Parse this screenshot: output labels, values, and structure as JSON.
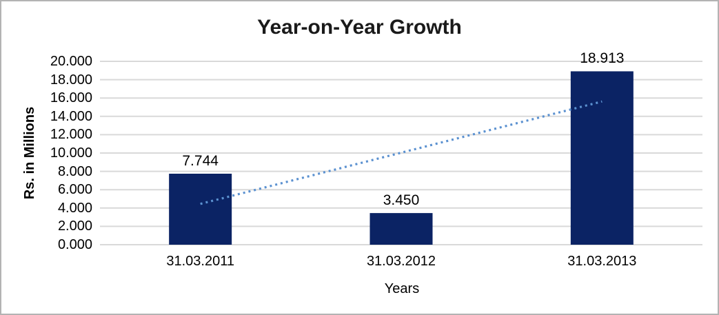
{
  "chart_data": {
    "type": "bar",
    "title": "Year-on-Year Growth",
    "xlabel": "Years",
    "ylabel": "Rs. in Millions",
    "categories": [
      "31.03.2011",
      "31.03.2012",
      "31.03.2013"
    ],
    "values": [
      7.744,
      3.45,
      18.913
    ],
    "value_labels": [
      "7.744",
      "3.450",
      "18.913"
    ],
    "ylim": [
      0,
      20
    ],
    "ytick_step": 2,
    "ytick_labels": [
      "0.000",
      "2.000",
      "4.000",
      "6.000",
      "8.000",
      "10.000",
      "12.000",
      "14.000",
      "16.000",
      "18.000",
      "20.000"
    ],
    "grid": true,
    "legend": "none",
    "colors": {
      "bar": "#0b2364",
      "trendline": "#5b91d0",
      "gridline": "#d9d9d9",
      "frame_border": "#b3b3b3",
      "text": "#000000"
    },
    "trendline": {
      "kind": "linear",
      "style": "dotted",
      "span": "first-to-last-category"
    }
  }
}
